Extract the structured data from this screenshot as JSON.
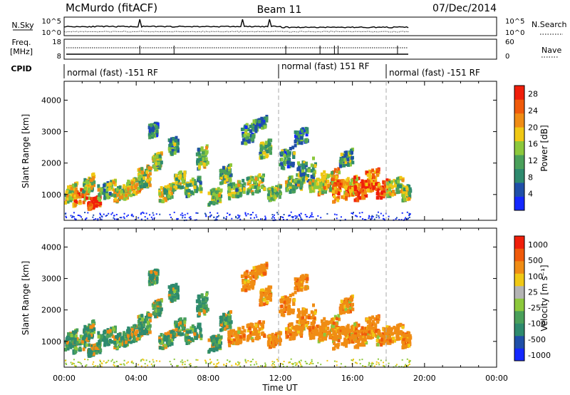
{
  "header": {
    "station": "McMurdo (fitACF)",
    "beam": "Beam 11",
    "date": "07/Dec/2014"
  },
  "noise_panel": {
    "left_label": "N.Sky",
    "left_ticks": [
      "10^5",
      "10^0"
    ],
    "right_ticks": [
      "10^5",
      "10^0"
    ],
    "right_label": "N.Search"
  },
  "freq_panel": {
    "left_label_1": "Freq.",
    "left_label_2": "[MHz]",
    "left_ticks": [
      "18",
      "8"
    ],
    "right_ticks": [
      "60",
      "0"
    ],
    "right_label": "Nave"
  },
  "cpid": {
    "label": "CPID",
    "segments": [
      {
        "start_hour": 0,
        "text": "normal (fast) -151 RF"
      },
      {
        "start_hour": 12,
        "text": "normal (fast) 151 RF"
      },
      {
        "start_hour": 18,
        "text": "normal (fast) -151 RF"
      }
    ]
  },
  "colors": {
    "power_scale": [
      "#1428ff",
      "#1f4fa8",
      "#2e8a6e",
      "#4aa05a",
      "#8cc83c",
      "#f0c814",
      "#f08c14",
      "#f05a0a",
      "#f01e0a"
    ],
    "velocity_scale": [
      "#1428ff",
      "#1f4fa8",
      "#2e8a6e",
      "#4aa05a",
      "#8cc83c",
      "#b4b4b4",
      "#f0c814",
      "#f08c14",
      "#f05a0a",
      "#f01e0a"
    ]
  },
  "chart_data": [
    {
      "type": "heatmap",
      "name": "power",
      "ylabel": "Slant Range [km]",
      "xlabel": "Time UT",
      "x_ticks": [
        "00:00",
        "04:00",
        "08:00",
        "12:00",
        "16:00",
        "20:00",
        "00:00"
      ],
      "x_range_hours": [
        0,
        24
      ],
      "data_end_hour": 19.2,
      "y_ticks": [
        1000,
        2000,
        3000,
        4000
      ],
      "ylim": [
        180,
        4600
      ],
      "colorbar_label": "Power [dB]",
      "colorbar_ticks": [
        "4",
        "8",
        "12",
        "16",
        "20",
        "24",
        "28"
      ],
      "colorbar_range": [
        0,
        30
      ]
    },
    {
      "type": "heatmap",
      "name": "velocity",
      "ylabel": "Slant Range [km]",
      "xlabel": "Time UT",
      "x_ticks": [
        "00:00",
        "04:00",
        "08:00",
        "12:00",
        "16:00",
        "20:00",
        "00:00"
      ],
      "x_range_hours": [
        0,
        24
      ],
      "data_end_hour": 19.2,
      "y_ticks": [
        1000,
        2000,
        3000,
        4000
      ],
      "ylim": [
        180,
        4600
      ],
      "colorbar_label": "Velocity [m s⁻¹]",
      "colorbar_ticks": [
        "1000",
        "500",
        "100",
        "25",
        "-25",
        "-100",
        "-500",
        "-1000"
      ]
    }
  ],
  "xaxis_title": "Time UT"
}
